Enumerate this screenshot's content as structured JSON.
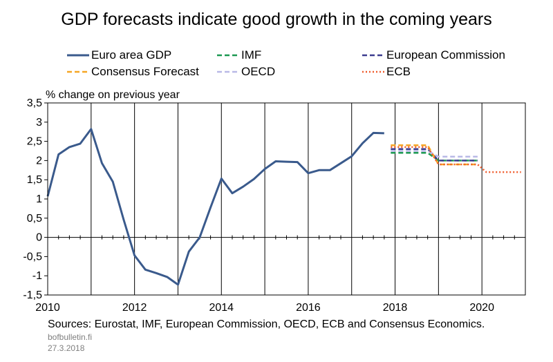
{
  "chart_data": {
    "type": "line",
    "title": "GDP forecasts indicate good growth in the coming years",
    "ylabel": "% change on previous year",
    "xlabel": "",
    "xlim": [
      2010,
      2021
    ],
    "ylim": [
      -1.5,
      3.5
    ],
    "x_ticks": [
      "2010",
      "2012",
      "2014",
      "2016",
      "2018",
      "2020"
    ],
    "y_ticks": [
      "3,5",
      "3",
      "2,5",
      "2",
      "1,5",
      "1",
      "0,5",
      "0",
      "-0,5",
      "-1",
      "-1,5"
    ],
    "grid": "vertical at years, horizontal ticks only",
    "legend_position": "top",
    "series": [
      {
        "name": "Euro area GDP",
        "color": "#3a5a8c",
        "style": "solid",
        "points": [
          [
            2010.0,
            1.07
          ],
          [
            2010.25,
            2.16
          ],
          [
            2010.5,
            2.35
          ],
          [
            2010.75,
            2.44
          ],
          [
            2011.0,
            2.82
          ],
          [
            2011.25,
            1.93
          ],
          [
            2011.5,
            1.45
          ],
          [
            2011.75,
            0.46
          ],
          [
            2012.0,
            -0.47
          ],
          [
            2012.25,
            -0.84
          ],
          [
            2012.5,
            -0.93
          ],
          [
            2012.75,
            -1.03
          ],
          [
            2013.0,
            -1.23
          ],
          [
            2013.25,
            -0.37
          ],
          [
            2013.5,
            0.0
          ],
          [
            2013.75,
            0.78
          ],
          [
            2014.0,
            1.53
          ],
          [
            2014.25,
            1.15
          ],
          [
            2014.5,
            1.32
          ],
          [
            2014.75,
            1.52
          ],
          [
            2015.0,
            1.78
          ],
          [
            2015.25,
            1.98
          ],
          [
            2015.5,
            1.97
          ],
          [
            2015.75,
            1.96
          ],
          [
            2016.0,
            1.67
          ],
          [
            2016.25,
            1.75
          ],
          [
            2016.5,
            1.75
          ],
          [
            2016.75,
            1.93
          ],
          [
            2017.0,
            2.11
          ],
          [
            2017.25,
            2.45
          ],
          [
            2017.5,
            2.72
          ],
          [
            2017.75,
            2.71
          ]
        ]
      },
      {
        "name": "IMF",
        "color": "#1a9850",
        "style": "dashed",
        "points": [
          [
            2017.9,
            2.2
          ],
          [
            2018.75,
            2.2
          ],
          [
            2019.0,
            2.0
          ],
          [
            2019.9,
            2.0
          ]
        ]
      },
      {
        "name": "European Commission",
        "color": "#3b3b8f",
        "style": "dashed",
        "points": [
          [
            2017.9,
            2.3
          ],
          [
            2018.75,
            2.3
          ],
          [
            2019.0,
            2.0
          ],
          [
            2019.9,
            2.0
          ]
        ]
      },
      {
        "name": "Consensus Forecast",
        "color": "#f5a623",
        "style": "dashed",
        "points": [
          [
            2017.9,
            2.4
          ],
          [
            2018.75,
            2.4
          ],
          [
            2019.0,
            1.9
          ],
          [
            2019.9,
            1.9
          ]
        ]
      },
      {
        "name": "OECD",
        "color": "#b8b8e6",
        "style": "dashed",
        "points": [
          [
            2017.9,
            2.25
          ],
          [
            2018.75,
            2.25
          ],
          [
            2019.0,
            2.1
          ],
          [
            2019.9,
            2.1
          ]
        ]
      },
      {
        "name": "ECB",
        "color": "#ef5b2b",
        "style": "dotted",
        "points": [
          [
            2017.9,
            2.35
          ],
          [
            2018.75,
            2.35
          ],
          [
            2019.0,
            1.9
          ],
          [
            2019.9,
            1.9
          ],
          [
            2020.1,
            1.7
          ],
          [
            2020.9,
            1.7
          ]
        ]
      }
    ]
  },
  "legend": [
    {
      "label": "Euro area GDP",
      "color": "#3a5a8c",
      "style": "solid"
    },
    {
      "label": "IMF",
      "color": "#1a9850",
      "style": "dashed"
    },
    {
      "label": "European Commission",
      "color": "#3b3b8f",
      "style": "dashed"
    },
    {
      "label": "Consensus Forecast",
      "color": "#f5a623",
      "style": "dashed"
    },
    {
      "label": "OECD",
      "color": "#b8b8e6",
      "style": "dashed"
    },
    {
      "label": "ECB",
      "color": "#ef5b2b",
      "style": "dotted"
    }
  ],
  "footer": {
    "sources": "Sources: Eurostat, IMF, European Commission, OECD, ECB and Consensus Economics.",
    "site": "bofbulletin.fi",
    "date": "27.3.2018"
  }
}
